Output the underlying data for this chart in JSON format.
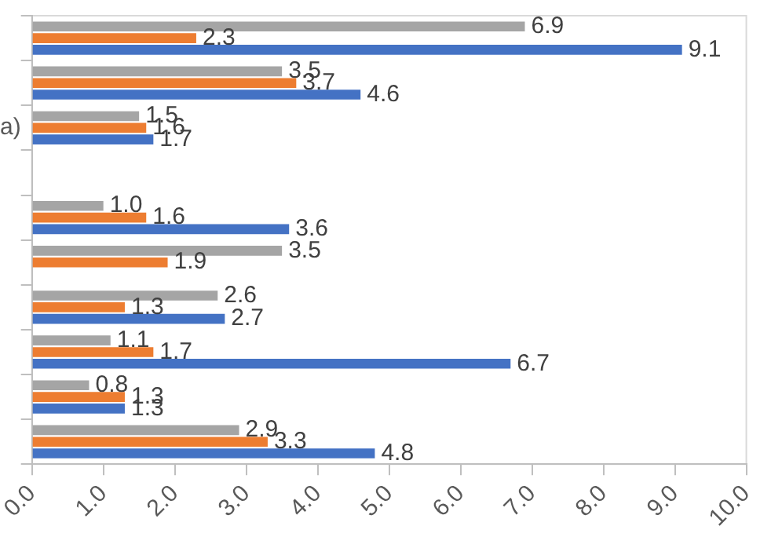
{
  "chart_data": {
    "type": "bar",
    "orientation": "horizontal",
    "categories": [
      null,
      null,
      "a)",
      null,
      null,
      null,
      null,
      null,
      null,
      null
    ],
    "series": [
      {
        "color": "#a5a5a5",
        "values": [
          6.9,
          3.5,
          1.5,
          null,
          1.0,
          3.5,
          2.6,
          1.1,
          0.8,
          2.9
        ],
        "value_labels": [
          "6.9",
          "3.5",
          "1.5",
          null,
          "1.0",
          "3.5",
          "2.6",
          "1.1",
          "0.8",
          "2.9"
        ]
      },
      {
        "color": "#ed7d31",
        "values": [
          2.3,
          3.7,
          1.6,
          null,
          1.6,
          1.9,
          1.3,
          1.7,
          1.3,
          3.3
        ],
        "value_labels": [
          "2.3",
          "3.7",
          "1.6",
          null,
          "1.6",
          "1.9",
          "1.3",
          "1.7",
          "1.3",
          "3.3"
        ]
      },
      {
        "color": "#4472c4",
        "values": [
          9.1,
          4.6,
          1.7,
          null,
          3.6,
          null,
          2.7,
          6.7,
          1.3,
          4.8
        ],
        "value_labels": [
          "9.1",
          "4.6",
          "1.7",
          null,
          "3.6",
          null,
          "2.7",
          "6.7",
          "1.3",
          "4.8"
        ]
      }
    ],
    "xlim": [
      0,
      10
    ],
    "xticks": [
      {
        "value": 0,
        "label": "0.0"
      },
      {
        "value": 1,
        "label": "1.0"
      },
      {
        "value": 2,
        "label": "2.0"
      },
      {
        "value": 3,
        "label": "3.0"
      },
      {
        "value": 4,
        "label": "4.0"
      },
      {
        "value": 5,
        "label": "5.0"
      },
      {
        "value": 6,
        "label": "6.0"
      },
      {
        "value": 7,
        "label": "7.0"
      },
      {
        "value": 8,
        "label": "8.0"
      },
      {
        "value": 9,
        "label": "9.0"
      },
      {
        "value": 10,
        "label": "10.0"
      }
    ],
    "grid": false,
    "legend": false
  }
}
